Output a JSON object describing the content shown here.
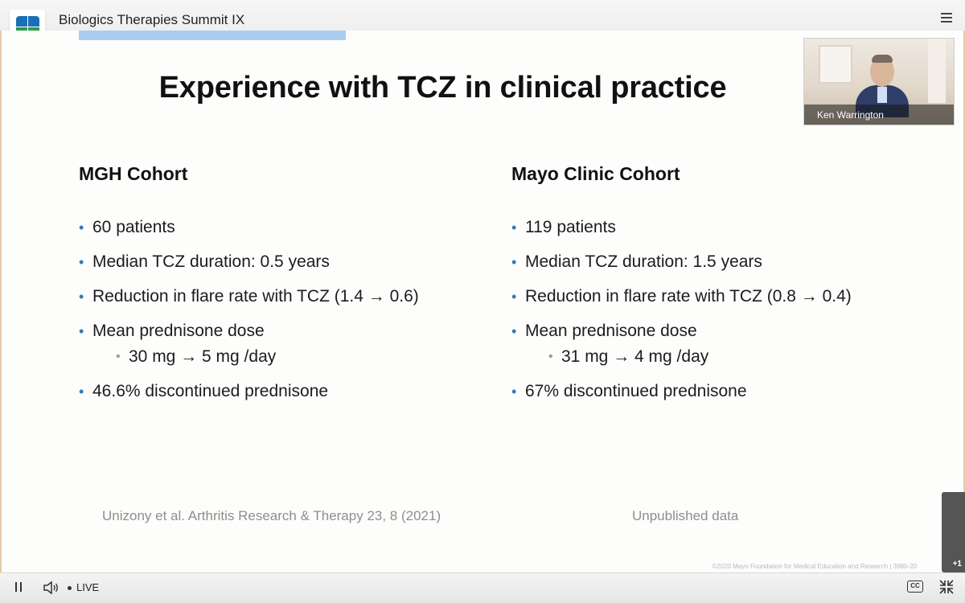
{
  "app": {
    "title": "Biologics Therapies Summit IX"
  },
  "slide": {
    "title": "Experience with TCZ in clinical practice",
    "left": {
      "heading": "MGH Cohort",
      "bullets": [
        "60 patients",
        "Median TCZ duration: 0.5 years",
        "Reduction in flare rate with TCZ (1.4 → 0.6)",
        "Mean prednisone dose",
        "46.6% discontinued prednisone"
      ],
      "sub_bullet": "30 mg → 5 mg /day",
      "citation": "Unizony et al. Arthritis Research & Therapy 23, 8 (2021)"
    },
    "right": {
      "heading": "Mayo Clinic Cohort",
      "bullets": [
        "119 patients",
        "Median TCZ duration: 1.5 years",
        "Reduction in flare rate with TCZ (0.8 → 0.4)",
        "Mean prednisone dose",
        "67% discontinued prednisone"
      ],
      "sub_bullet": "31 mg → 4 mg /day",
      "citation": "Unpublished data"
    },
    "copyright": "©2020 Mayo Foundation for Medical Education and Research  |  3980-20"
  },
  "video": {
    "speaker_name": "Ken Warrington"
  },
  "overlay": {
    "badge": "+1"
  },
  "player": {
    "live_label": "LIVE",
    "cc_label": "CC"
  },
  "colors": {
    "accent_bar": "#a9cdef",
    "bullet_blue": "#2e7bbd",
    "logo_blue": "#1a6fb6",
    "logo_green": "#2f9a48"
  }
}
